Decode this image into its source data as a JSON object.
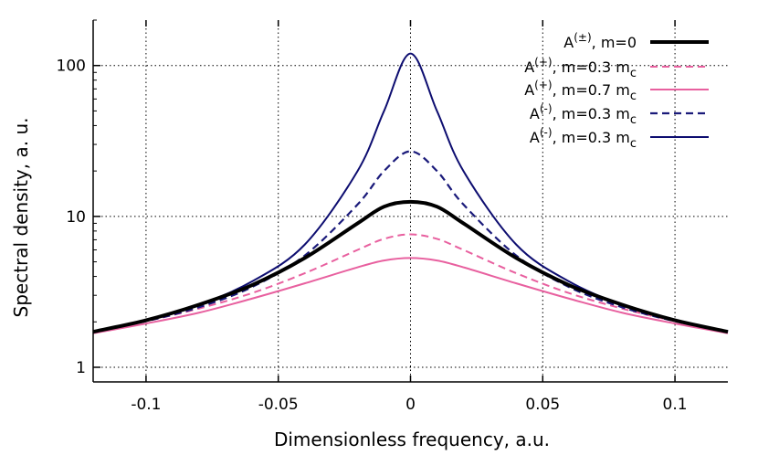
{
  "chart_data": {
    "type": "line",
    "title": "",
    "xlabel": "Dimensionless frequency, a.u.",
    "ylabel": "Spectral density, a. u.",
    "xlim": [
      -0.12,
      0.12
    ],
    "ylim": [
      0.8,
      200
    ],
    "y_scale": "log",
    "grid": true,
    "legend_position": "top-right",
    "x_ticks": [
      {
        "value": -0.1,
        "label": "-0.1"
      },
      {
        "value": -0.05,
        "label": "-0.05"
      },
      {
        "value": 0,
        "label": "0"
      },
      {
        "value": 0.05,
        "label": "0.05"
      },
      {
        "value": 0.1,
        "label": "0.1"
      }
    ],
    "y_ticks": [
      {
        "value": 1,
        "label": "1"
      },
      {
        "value": 10,
        "label": "10"
      },
      {
        "value": 100,
        "label": "100"
      }
    ],
    "x": [
      -0.12,
      -0.1,
      -0.08,
      -0.06,
      -0.04,
      -0.02,
      -0.01,
      0,
      0.01,
      0.02,
      0.04,
      0.06,
      0.08,
      0.1,
      0.12
    ],
    "series": [
      {
        "name": "A(±), m=0",
        "label_base": "A",
        "label_sup": "(±)",
        "label_rest": ", m=0",
        "label_sub": "",
        "color": "#000000",
        "dash": "solid",
        "width": 4,
        "values": [
          1.72,
          2.05,
          2.6,
          3.5,
          5.3,
          9.0,
          11.6,
          12.5,
          11.6,
          9.0,
          5.3,
          3.5,
          2.6,
          2.05,
          1.72
        ]
      },
      {
        "name": "A(+), m=0.3 mc",
        "label_base": "A",
        "label_sup": "(+)",
        "label_rest": ", m=0.3 m",
        "label_sub": "c",
        "color": "#e8609f",
        "dash": "dashed",
        "width": 2,
        "values": [
          1.7,
          2.02,
          2.45,
          3.1,
          4.2,
          6.0,
          7.1,
          7.6,
          7.1,
          6.0,
          4.2,
          3.1,
          2.45,
          2.02,
          1.7
        ]
      },
      {
        "name": "A(+), m=0.7 mc",
        "label_base": "A",
        "label_sup": "(+)",
        "label_rest": ", m=0.7 m",
        "label_sub": "c",
        "color": "#e8609f",
        "dash": "solid",
        "width": 2,
        "values": [
          1.68,
          1.95,
          2.3,
          2.85,
          3.6,
          4.6,
          5.1,
          5.3,
          5.1,
          4.6,
          3.6,
          2.85,
          2.3,
          1.95,
          1.68
        ]
      },
      {
        "name": "A(-), m=0.3 mc",
        "label_base": "A",
        "label_sup": "(-)",
        "label_rest": ", m=0.3 m",
        "label_sub": "c",
        "color": "#1a1a7a",
        "dash": "dashed",
        "width": 2.2,
        "values": [
          1.72,
          2.02,
          2.5,
          3.4,
          5.5,
          12.0,
          20.0,
          27.0,
          20.0,
          12.0,
          5.5,
          3.4,
          2.5,
          2.02,
          1.72
        ]
      },
      {
        "name": "A(-), m=0.3 mc",
        "label_base": "A",
        "label_sup": "(-)",
        "label_rest": ", m=0.3 m",
        "label_sub": "c",
        "color": "#0d0d70",
        "dash": "solid",
        "width": 2,
        "values": [
          1.72,
          2.05,
          2.6,
          3.7,
          6.5,
          20.0,
          50.0,
          120.0,
          50.0,
          20.0,
          6.5,
          3.7,
          2.6,
          2.05,
          1.72
        ]
      }
    ]
  }
}
